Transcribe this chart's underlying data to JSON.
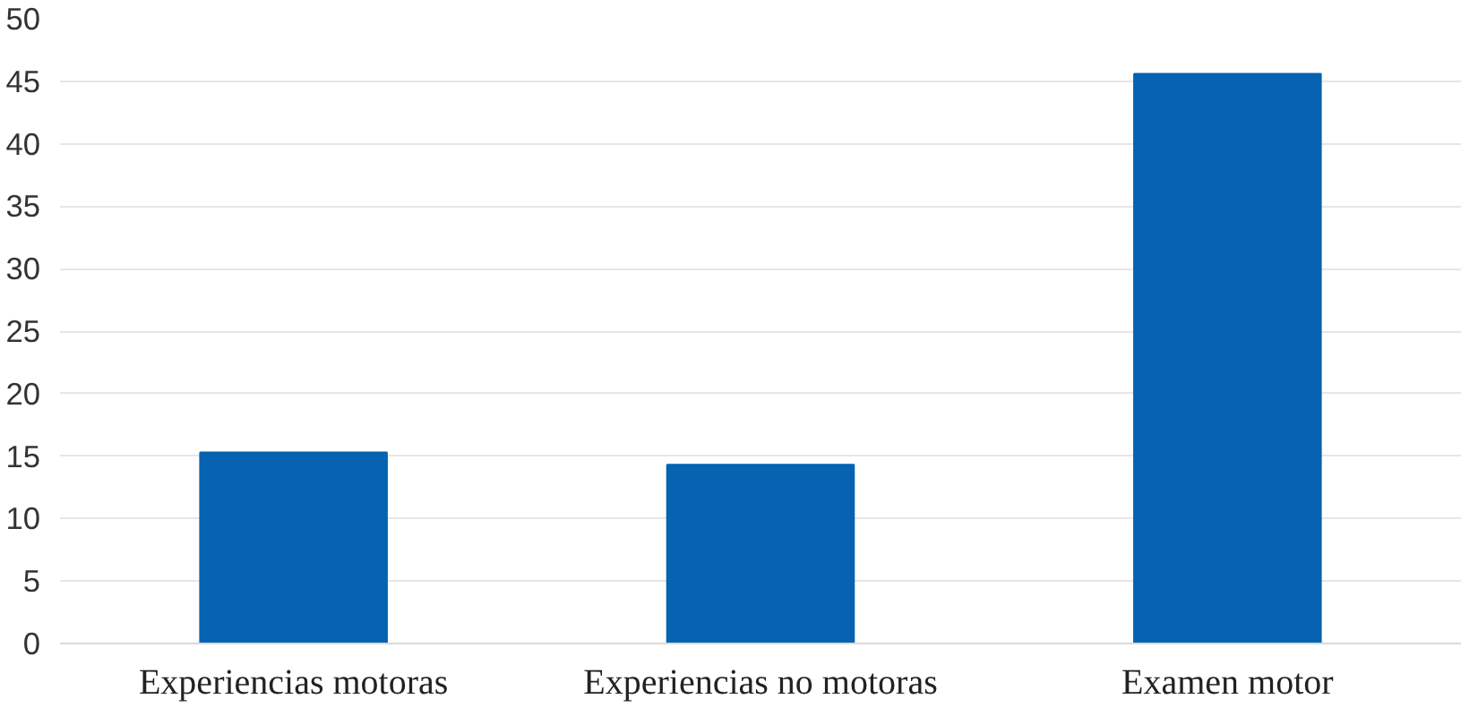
{
  "chart_data": {
    "type": "bar",
    "categories": [
      "Experiencias motoras",
      "Experiencias no motoras",
      "Examen motor"
    ],
    "values": [
      15.3,
      14.3,
      45.6
    ],
    "color": "#0563b1",
    "ylim": [
      0,
      50
    ],
    "yticks": [
      0,
      5,
      10,
      15,
      20,
      25,
      30,
      35,
      40,
      45,
      50
    ],
    "grid": "y"
  }
}
